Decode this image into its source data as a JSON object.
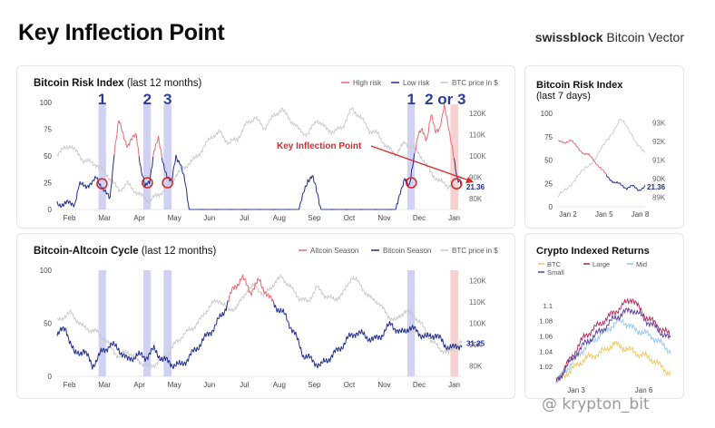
{
  "header": {
    "title": "Key Inflection Point",
    "brand_bold": "swissblock",
    "brand_rest": " Bitcoin Vector"
  },
  "watermark": "@ krypton_bit",
  "colors": {
    "high": "#e86a73",
    "low": "#1f2e8c",
    "btc_price": "#c8c8c8",
    "highlight_blue": "#c9c9f2",
    "highlight_red": "#f6caca",
    "annotation": "#d42a2a",
    "label_blue": "#2a3b9c",
    "ret_btc": "#f2c458",
    "ret_large": "#b3245a",
    "ret_mid": "#8fc6f0",
    "ret_small": "#5a3a9a"
  },
  "chart_data": [
    {
      "id": "risk",
      "type": "line",
      "title": "Bitcoin Risk Index",
      "title_suffix": " (last 12 months)",
      "legend": [
        "High risk",
        "Low risk",
        "BTC price in $"
      ],
      "x_ticks": [
        "Feb",
        "Mar",
        "Apr",
        "May",
        "Jun",
        "Jul",
        "Aug",
        "Sep",
        "Oct",
        "Nov",
        "Dec",
        "Jan"
      ],
      "y_left_ticks": [
        "0",
        "25",
        "50",
        "75",
        "100"
      ],
      "y_left_range": [
        0,
        100
      ],
      "y_right_ticks": [
        "80K",
        "90K",
        "100K",
        "110K",
        "120K"
      ],
      "y_right_range": [
        75000,
        125000
      ],
      "markers": [
        "1",
        "2",
        "3",
        "1",
        "2 or 3"
      ],
      "annotation": "Key Inflection Point",
      "last_value": "21.36",
      "keypoints": [
        [
          0,
          5
        ],
        [
          4,
          6
        ],
        [
          5,
          22
        ],
        [
          8,
          24
        ],
        [
          9,
          30
        ],
        [
          11,
          15
        ],
        [
          12,
          10
        ],
        [
          13,
          55
        ],
        [
          14,
          82
        ],
        [
          15,
          70
        ],
        [
          16,
          60
        ],
        [
          18,
          70
        ],
        [
          19,
          40
        ],
        [
          20,
          20
        ],
        [
          21,
          26
        ],
        [
          22,
          56
        ],
        [
          23,
          65
        ],
        [
          24,
          45
        ],
        [
          25,
          32
        ],
        [
          26,
          24
        ],
        [
          27,
          50
        ],
        [
          28,
          44
        ],
        [
          29,
          26
        ],
        [
          30,
          0
        ],
        [
          55,
          0
        ],
        [
          57,
          28
        ],
        [
          58,
          32
        ],
        [
          59,
          16
        ],
        [
          60,
          0
        ],
        [
          77,
          0
        ],
        [
          78,
          18
        ],
        [
          79,
          28
        ],
        [
          80,
          20
        ],
        [
          81,
          48
        ],
        [
          82,
          68
        ],
        [
          83,
          74
        ],
        [
          84,
          66
        ],
        [
          85,
          88
        ],
        [
          86,
          72
        ],
        [
          87,
          78
        ],
        [
          88,
          96
        ],
        [
          89,
          75
        ],
        [
          90,
          56
        ],
        [
          91,
          26
        ],
        [
          92,
          22
        ]
      ],
      "btc_price_keypoints": [
        [
          0,
          101000
        ],
        [
          3,
          105000
        ],
        [
          6,
          98000
        ],
        [
          9,
          96000
        ],
        [
          11,
          92000
        ],
        [
          14,
          84000
        ],
        [
          16,
          87000
        ],
        [
          18,
          83000
        ],
        [
          21,
          79000
        ],
        [
          23,
          82000
        ],
        [
          25,
          85000
        ],
        [
          27,
          91000
        ],
        [
          29,
          95000
        ],
        [
          31,
          98000
        ],
        [
          33,
          103000
        ],
        [
          35,
          109000
        ],
        [
          37,
          111000
        ],
        [
          39,
          106000
        ],
        [
          41,
          108000
        ],
        [
          43,
          115000
        ],
        [
          45,
          118000
        ],
        [
          47,
          113000
        ],
        [
          49,
          118000
        ],
        [
          51,
          122000
        ],
        [
          53,
          117000
        ],
        [
          55,
          112000
        ],
        [
          57,
          110000
        ],
        [
          59,
          117000
        ],
        [
          61,
          113000
        ],
        [
          63,
          111000
        ],
        [
          65,
          114000
        ],
        [
          67,
          122000
        ],
        [
          69,
          118000
        ],
        [
          71,
          112000
        ],
        [
          73,
          110000
        ],
        [
          75,
          104000
        ],
        [
          77,
          101000
        ],
        [
          79,
          106000
        ],
        [
          81,
          104000
        ],
        [
          83,
          99000
        ],
        [
          85,
          92000
        ],
        [
          87,
          88000
        ],
        [
          89,
          86000
        ],
        [
          91,
          90000
        ],
        [
          92,
          91000
        ]
      ]
    },
    {
      "id": "cycle",
      "type": "line",
      "title": "Bitcoin-Altcoin Cycle",
      "title_suffix": " (last 12 months)",
      "legend": [
        "Altcoin Season",
        "Bitcoin Season",
        "BTC price in $"
      ],
      "x_ticks": [
        "Feb",
        "Mar",
        "Apr",
        "May",
        "Jun",
        "Jul",
        "Aug",
        "Sep",
        "Oct",
        "Nov",
        "Dec",
        "Jan"
      ],
      "y_left_ticks": [
        "0",
        "50",
        "100"
      ],
      "y_left_range": [
        0,
        100
      ],
      "y_right_ticks": [
        "80K",
        "90K",
        "100K",
        "110K",
        "120K"
      ],
      "y_right_range": [
        75000,
        125000
      ],
      "last_value": "31.25",
      "keypoints": [
        [
          0,
          40
        ],
        [
          2,
          45
        ],
        [
          4,
          20
        ],
        [
          6,
          25
        ],
        [
          8,
          10
        ],
        [
          10,
          22
        ],
        [
          12,
          30
        ],
        [
          14,
          26
        ],
        [
          16,
          15
        ],
        [
          18,
          20
        ],
        [
          20,
          18
        ],
        [
          22,
          25
        ],
        [
          24,
          16
        ],
        [
          26,
          12
        ],
        [
          28,
          10
        ],
        [
          30,
          18
        ],
        [
          32,
          28
        ],
        [
          34,
          38
        ],
        [
          36,
          48
        ],
        [
          38,
          62
        ],
        [
          40,
          82
        ],
        [
          42,
          93
        ],
        [
          44,
          80
        ],
        [
          46,
          90
        ],
        [
          48,
          75
        ],
        [
          50,
          65
        ],
        [
          52,
          56
        ],
        [
          54,
          40
        ],
        [
          56,
          20
        ],
        [
          58,
          15
        ],
        [
          60,
          10
        ],
        [
          62,
          18
        ],
        [
          64,
          25
        ],
        [
          66,
          35
        ],
        [
          68,
          42
        ],
        [
          70,
          38
        ],
        [
          72,
          34
        ],
        [
          74,
          40
        ],
        [
          76,
          50
        ],
        [
          78,
          40
        ],
        [
          80,
          46
        ],
        [
          82,
          42
        ],
        [
          84,
          36
        ],
        [
          86,
          40
        ],
        [
          88,
          30
        ],
        [
          90,
          26
        ],
        [
          92,
          31
        ]
      ],
      "btc_price_keypoints": [
        [
          0,
          101000
        ],
        [
          3,
          105000
        ],
        [
          6,
          98000
        ],
        [
          9,
          96000
        ],
        [
          11,
          92000
        ],
        [
          14,
          84000
        ],
        [
          16,
          87000
        ],
        [
          18,
          83000
        ],
        [
          21,
          79000
        ],
        [
          23,
          82000
        ],
        [
          25,
          85000
        ],
        [
          27,
          91000
        ],
        [
          29,
          95000
        ],
        [
          31,
          98000
        ],
        [
          33,
          103000
        ],
        [
          35,
          109000
        ],
        [
          37,
          111000
        ],
        [
          39,
          106000
        ],
        [
          41,
          108000
        ],
        [
          43,
          115000
        ],
        [
          45,
          118000
        ],
        [
          47,
          113000
        ],
        [
          49,
          118000
        ],
        [
          51,
          122000
        ],
        [
          53,
          117000
        ],
        [
          55,
          112000
        ],
        [
          57,
          110000
        ],
        [
          59,
          117000
        ],
        [
          61,
          113000
        ],
        [
          63,
          111000
        ],
        [
          65,
          114000
        ],
        [
          67,
          122000
        ],
        [
          69,
          118000
        ],
        [
          71,
          112000
        ],
        [
          73,
          110000
        ],
        [
          75,
          104000
        ],
        [
          77,
          101000
        ],
        [
          79,
          106000
        ],
        [
          81,
          104000
        ],
        [
          83,
          99000
        ],
        [
          85,
          92000
        ],
        [
          87,
          88000
        ],
        [
          89,
          86000
        ],
        [
          91,
          90000
        ],
        [
          92,
          91000
        ]
      ]
    },
    {
      "id": "risk7",
      "type": "line",
      "title": "Bitcoin Risk Index",
      "title_suffix": " (last 7 days)",
      "x_ticks": [
        "Jan 2",
        "Jan 5",
        "Jan 8"
      ],
      "y_left_ticks": [
        "0",
        "25",
        "50",
        "75",
        "100"
      ],
      "y_left_range": [
        0,
        100
      ],
      "y_right_ticks": [
        "89K",
        "90K",
        "91K",
        "92K",
        "93K"
      ],
      "y_right_range": [
        88500,
        93500
      ],
      "last_value": "21.36",
      "risk_keypoints": [
        [
          0,
          70
        ],
        [
          0.5,
          68
        ],
        [
          1,
          72
        ],
        [
          1.5,
          64
        ],
        [
          2,
          58
        ],
        [
          2.5,
          55
        ],
        [
          3,
          48
        ],
        [
          3.5,
          40
        ],
        [
          4,
          32
        ],
        [
          4.5,
          26
        ],
        [
          5,
          24
        ],
        [
          5.5,
          20
        ],
        [
          6,
          22
        ],
        [
          6.5,
          18
        ],
        [
          7,
          21.36
        ]
      ],
      "price_keypoints": [
        [
          0,
          89000
        ],
        [
          1,
          89700
        ],
        [
          2,
          90400
        ],
        [
          3,
          91100
        ],
        [
          4,
          92100
        ],
        [
          5,
          93200
        ],
        [
          6,
          92300
        ],
        [
          7,
          91300
        ]
      ]
    },
    {
      "id": "returns",
      "type": "line",
      "title": "Crypto Indexed Returns",
      "legend": [
        "BTC",
        "Large",
        "Mid",
        "Small"
      ],
      "x_ticks": [
        "Jan 3",
        "Jan 6"
      ],
      "y_ticks": [
        "1.02",
        "1.04",
        "1.06",
        "1.08",
        "1.1"
      ],
      "y_range": [
        1.0,
        1.12
      ],
      "series": [
        {
          "name": "BTC",
          "values": [
            1.0,
            1.01,
            1.02,
            1.03,
            1.035,
            1.04,
            1.05,
            1.045,
            1.04,
            1.035,
            1.03,
            1.02,
            1.01
          ]
        },
        {
          "name": "Large",
          "values": [
            1.0,
            1.02,
            1.04,
            1.06,
            1.07,
            1.08,
            1.09,
            1.1,
            1.11,
            1.09,
            1.08,
            1.07,
            1.06
          ]
        },
        {
          "name": "Mid",
          "values": [
            1.0,
            1.015,
            1.03,
            1.045,
            1.055,
            1.065,
            1.075,
            1.08,
            1.07,
            1.065,
            1.06,
            1.05,
            1.04
          ]
        },
        {
          "name": "Small",
          "values": [
            1.0,
            1.018,
            1.035,
            1.05,
            1.06,
            1.07,
            1.082,
            1.09,
            1.095,
            1.085,
            1.075,
            1.065,
            1.055
          ]
        }
      ]
    }
  ]
}
